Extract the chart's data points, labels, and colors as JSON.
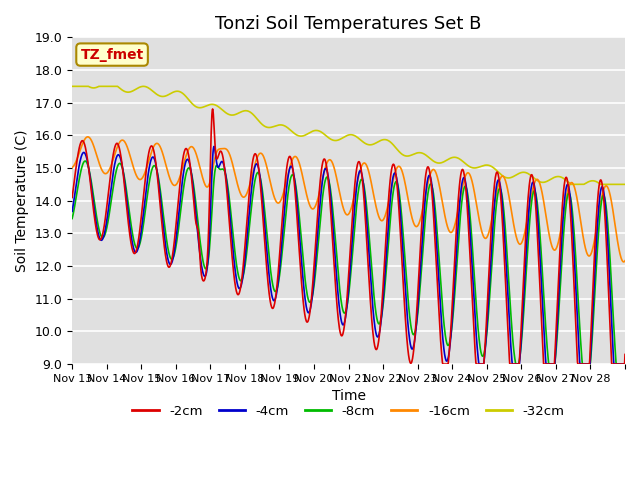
{
  "title": "Tonzi Soil Temperatures Set B",
  "xlabel": "Time",
  "ylabel": "Soil Temperature (C)",
  "ylim": [
    9.0,
    19.0
  ],
  "yticks": [
    9.0,
    10.0,
    11.0,
    12.0,
    13.0,
    14.0,
    15.0,
    16.0,
    17.0,
    18.0,
    19.0
  ],
  "xtick_labels": [
    "Nov 13",
    "Nov 14",
    "Nov 15",
    "Nov 16",
    "Nov 17",
    "Nov 18",
    "Nov 19",
    "Nov 20",
    "Nov 21",
    "Nov 22",
    "Nov 23",
    "Nov 24",
    "Nov 25",
    "Nov 26",
    "Nov 27",
    "Nov 28"
  ],
  "legend_title": "TZ_fmet",
  "legend_entries": [
    "-2cm",
    "-4cm",
    "-8cm",
    "-16cm",
    "-32cm"
  ],
  "line_colors": [
    "#dd0000",
    "#0000cc",
    "#00bb00",
    "#ff8800",
    "#cccc00"
  ],
  "background_color": "#e0e0e0",
  "title_fontsize": 13,
  "axis_fontsize": 10,
  "tick_fontsize": 9,
  "n_days": 16,
  "n_pts": 1536
}
